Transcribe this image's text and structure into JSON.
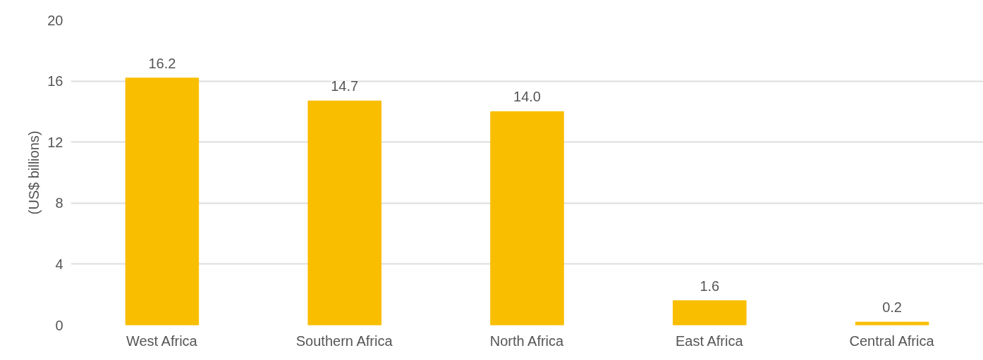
{
  "chart_data": {
    "type": "bar",
    "ylabel": "(US$ billions)",
    "categories": [
      "West Africa",
      "Southern Africa",
      "North Africa",
      "East Africa",
      "Central Africa"
    ],
    "values": [
      16.2,
      14.7,
      14.0,
      1.6,
      0.2
    ],
    "value_labels": [
      "16.2",
      "14.7",
      "14.0",
      "1.6",
      "0.2"
    ],
    "color": "#f9be00",
    "ylim": [
      0,
      20
    ],
    "yticks": [
      0,
      4,
      8,
      12,
      16,
      20
    ],
    "grid": "y"
  }
}
